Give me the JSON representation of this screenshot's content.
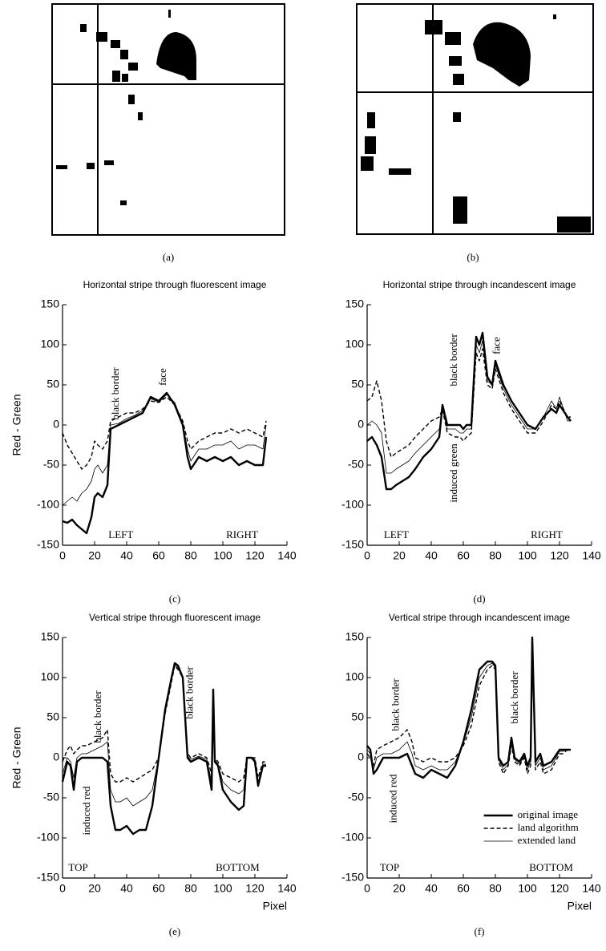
{
  "images": [
    {
      "caption": "(a)"
    },
    {
      "caption": "(b)"
    }
  ],
  "chart_data": [
    {
      "type": "line",
      "title": "Horizontal stripe through fluorescent image",
      "ylabel": "Red - Green",
      "caption": "(c)",
      "xlim": [
        0,
        140
      ],
      "xticks": [
        0,
        20,
        40,
        60,
        80,
        100,
        120,
        140
      ],
      "ylim": [
        -150,
        150
      ],
      "yticks": [
        -150,
        -100,
        -50,
        0,
        50,
        100,
        150
      ],
      "annotations": [
        "black border",
        "face",
        "LEFT",
        "RIGHT"
      ],
      "x": [
        0,
        3,
        6,
        9,
        12,
        15,
        18,
        20,
        22,
        25,
        28,
        30,
        35,
        40,
        45,
        50,
        55,
        60,
        65,
        70,
        75,
        78,
        80,
        85,
        90,
        95,
        100,
        105,
        110,
        115,
        120,
        125,
        127
      ],
      "series": [
        {
          "color": "#000000",
          "line_style": "solid",
          "line_width": 2.4,
          "values": [
            -120,
            -122,
            -118,
            -125,
            -130,
            -135,
            -115,
            -90,
            -85,
            -90,
            -75,
            -5,
            0,
            5,
            10,
            15,
            35,
            30,
            40,
            25,
            0,
            -40,
            -55,
            -40,
            -45,
            -40,
            -45,
            -40,
            -50,
            -45,
            -50,
            -50,
            -15
          ]
        },
        {
          "color": "#000000",
          "line_style": "dashed",
          "line_width": 1.4,
          "values": [
            -10,
            -25,
            -35,
            -45,
            -55,
            -50,
            -40,
            -20,
            -25,
            -30,
            -20,
            5,
            10,
            15,
            15,
            20,
            30,
            28,
            35,
            25,
            5,
            -20,
            -30,
            -20,
            -15,
            -10,
            -10,
            -5,
            -10,
            -5,
            -10,
            -15,
            5
          ]
        },
        {
          "color": "#000000",
          "line_style": "solid",
          "line_width": 0.8,
          "values": [
            -100,
            -95,
            -90,
            -95,
            -85,
            -80,
            -70,
            -55,
            -50,
            -60,
            -50,
            0,
            2,
            8,
            12,
            18,
            33,
            28,
            38,
            28,
            2,
            -30,
            -45,
            -30,
            -30,
            -25,
            -25,
            -20,
            -30,
            -25,
            -25,
            -30,
            0
          ]
        }
      ]
    },
    {
      "type": "line",
      "title": "Horizontal stripe through incandescent image",
      "caption": "(d)",
      "xlim": [
        0,
        140
      ],
      "xticks": [
        0,
        20,
        40,
        60,
        80,
        100,
        120,
        140
      ],
      "ylim": [
        -150,
        150
      ],
      "yticks": [
        -150,
        -100,
        -50,
        0,
        50,
        100,
        150
      ],
      "annotations": [
        "black border",
        "face",
        "induced green",
        "LEFT",
        "RIGHT"
      ],
      "x": [
        0,
        3,
        6,
        9,
        12,
        15,
        18,
        22,
        26,
        30,
        35,
        40,
        45,
        47,
        50,
        55,
        58,
        60,
        62,
        65,
        68,
        70,
        72,
        75,
        78,
        80,
        85,
        90,
        95,
        100,
        105,
        110,
        115,
        118,
        120,
        125,
        127
      ],
      "series": [
        {
          "color": "#000000",
          "line_style": "solid",
          "line_width": 2.4,
          "values": [
            -20,
            -15,
            -25,
            -40,
            -80,
            -80,
            -75,
            -70,
            -65,
            -55,
            -40,
            -30,
            -15,
            25,
            0,
            0,
            0,
            -5,
            0,
            0,
            110,
            100,
            115,
            60,
            50,
            80,
            50,
            30,
            15,
            0,
            -5,
            10,
            20,
            15,
            25,
            10,
            5
          ]
        },
        {
          "color": "#000000",
          "line_style": "dashed",
          "line_width": 1.4,
          "values": [
            30,
            35,
            55,
            30,
            -20,
            -40,
            -35,
            -30,
            -25,
            -15,
            -5,
            5,
            10,
            20,
            -10,
            -15,
            -15,
            -20,
            -15,
            -10,
            90,
            80,
            95,
            50,
            45,
            70,
            40,
            20,
            5,
            -10,
            -10,
            5,
            25,
            20,
            30,
            10,
            10
          ]
        },
        {
          "color": "#000000",
          "line_style": "solid",
          "line_width": 0.8,
          "values": [
            0,
            5,
            0,
            -10,
            -60,
            -60,
            -55,
            -50,
            -45,
            -35,
            -25,
            -15,
            -5,
            20,
            -5,
            -5,
            -10,
            -10,
            -5,
            -5,
            100,
            90,
            105,
            55,
            50,
            75,
            45,
            25,
            10,
            -5,
            -5,
            10,
            30,
            20,
            35,
            5,
            5
          ]
        }
      ]
    },
    {
      "type": "line",
      "title": "Vertical stripe through fluorescent image",
      "ylabel": "Red - Green",
      "xlabel": "Pixel",
      "caption": "(e)",
      "xlim": [
        0,
        140
      ],
      "xticks": [
        0,
        20,
        40,
        60,
        80,
        100,
        120,
        140
      ],
      "ylim": [
        -150,
        150
      ],
      "yticks": [
        -150,
        -100,
        -50,
        0,
        50,
        100,
        150
      ],
      "annotations": [
        "black border",
        "black border",
        "induced red",
        "TOP",
        "BOTTOM"
      ],
      "x": [
        0,
        3,
        5,
        7,
        9,
        12,
        15,
        20,
        25,
        28,
        30,
        33,
        36,
        40,
        44,
        48,
        52,
        56,
        60,
        64,
        68,
        70,
        72,
        75,
        78,
        80,
        85,
        90,
        93,
        94,
        95,
        97,
        100,
        105,
        110,
        113,
        115,
        118,
        120,
        122,
        125,
        127
      ],
      "series": [
        {
          "color": "#000000",
          "line_style": "solid",
          "line_width": 2.4,
          "values": [
            -30,
            -5,
            -10,
            -40,
            -5,
            0,
            0,
            0,
            0,
            -5,
            -60,
            -90,
            -90,
            -85,
            -95,
            -90,
            -90,
            -60,
            0,
            60,
            100,
            118,
            115,
            100,
            0,
            -5,
            0,
            -5,
            -40,
            85,
            -5,
            -10,
            -40,
            -55,
            -65,
            -60,
            0,
            0,
            -5,
            -35,
            -10,
            -10
          ]
        },
        {
          "color": "#000000",
          "line_style": "dashed",
          "line_width": 1.4,
          "values": [
            -5,
            10,
            15,
            5,
            10,
            15,
            15,
            20,
            25,
            35,
            -20,
            -30,
            -30,
            -25,
            -30,
            -25,
            -20,
            -15,
            0,
            55,
            95,
            115,
            110,
            100,
            5,
            0,
            5,
            0,
            -20,
            80,
            0,
            -5,
            -20,
            -25,
            -30,
            -25,
            0,
            0,
            0,
            -25,
            -5,
            -5
          ]
        },
        {
          "color": "#000000",
          "line_style": "solid",
          "line_width": 0.8,
          "values": [
            -20,
            0,
            -5,
            -25,
            0,
            5,
            5,
            10,
            15,
            20,
            -40,
            -55,
            -55,
            -50,
            -60,
            -55,
            -50,
            -40,
            0,
            58,
            98,
            116,
            112,
            100,
            2,
            -2,
            2,
            -2,
            -30,
            82,
            -2,
            -8,
            -30,
            -40,
            -45,
            -40,
            0,
            0,
            -2,
            -30,
            -8,
            -8
          ]
        }
      ]
    },
    {
      "type": "line",
      "title": "Vertical stripe through incandescent image",
      "xlabel": "Pixel",
      "caption": "(f)",
      "xlim": [
        0,
        140
      ],
      "xticks": [
        0,
        20,
        40,
        60,
        80,
        100,
        120,
        140
      ],
      "ylim": [
        -150,
        150
      ],
      "yticks": [
        -150,
        -100,
        -50,
        0,
        50,
        100,
        150
      ],
      "annotations": [
        "black border",
        "black border",
        "induced red",
        "TOP",
        "BOTTOM"
      ],
      "legend": "lower right",
      "x": [
        0,
        2,
        4,
        6,
        10,
        15,
        20,
        25,
        28,
        30,
        35,
        40,
        45,
        50,
        55,
        60,
        65,
        70,
        75,
        78,
        80,
        82,
        85,
        88,
        90,
        92,
        95,
        98,
        100,
        102,
        103,
        105,
        108,
        110,
        115,
        120,
        122,
        125,
        127
      ],
      "series": [
        {
          "name": "original image",
          "color": "#000000",
          "line_style": "solid",
          "line_width": 2.4,
          "values": [
            15,
            10,
            -20,
            -15,
            0,
            0,
            0,
            5,
            -10,
            -20,
            -25,
            -15,
            -20,
            -25,
            -10,
            20,
            60,
            110,
            120,
            120,
            115,
            0,
            -10,
            -5,
            25,
            0,
            -5,
            5,
            -10,
            0,
            150,
            -5,
            5,
            -10,
            -5,
            10,
            10,
            10,
            10
          ]
        },
        {
          "name": "land algorithm",
          "color": "#000000",
          "line_style": "dashed",
          "line_width": 1.4,
          "values": [
            5,
            0,
            -10,
            10,
            15,
            20,
            25,
            35,
            20,
            0,
            -5,
            0,
            -5,
            -5,
            0,
            15,
            40,
            90,
            110,
            115,
            110,
            -5,
            -20,
            -10,
            15,
            -5,
            -10,
            0,
            -20,
            -10,
            140,
            -15,
            -5,
            -20,
            -15,
            5,
            5,
            10,
            10
          ]
        },
        {
          "name": "extended land",
          "color": "#000000",
          "line_style": "solid",
          "line_width": 0.8,
          "values": [
            10,
            5,
            -15,
            0,
            5,
            5,
            10,
            20,
            5,
            -10,
            -15,
            -10,
            -15,
            -15,
            -5,
            18,
            50,
            100,
            115,
            118,
            112,
            -2,
            -15,
            -8,
            20,
            -2,
            -8,
            2,
            -15,
            -5,
            145,
            -10,
            0,
            -15,
            -10,
            8,
            8,
            10,
            10
          ]
        }
      ]
    }
  ]
}
